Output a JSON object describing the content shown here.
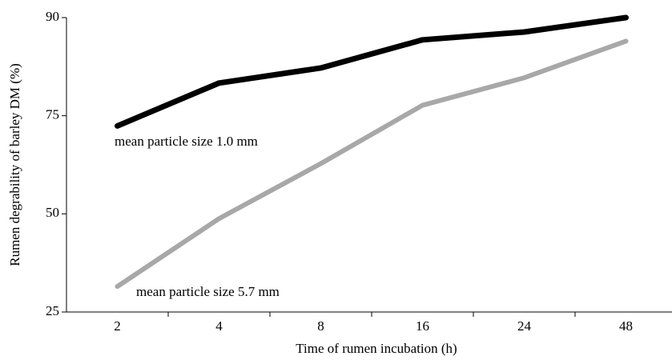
{
  "chart_data": {
    "type": "line",
    "x_label": "Time of rumen incubation (h)",
    "y_label": "Rumen degrability of barley DM (%)",
    "categories": [
      "2",
      "4",
      "8",
      "16",
      "24",
      "48"
    ],
    "series": [
      {
        "name": "mean particle size 1.0 mm",
        "color": "#000000",
        "values": [
          72.4,
          80,
          82.3,
          86.6,
          87.8,
          90
        ]
      },
      {
        "name": "mean particle size 5.7 mm",
        "color": "#a8a8a8",
        "values": [
          31.5,
          48.8,
          62.8,
          76.6,
          80.8,
          86.4
        ]
      }
    ],
    "ylim": [
      25,
      90
    ],
    "yticks": [
      25,
      50,
      75,
      90
    ]
  }
}
